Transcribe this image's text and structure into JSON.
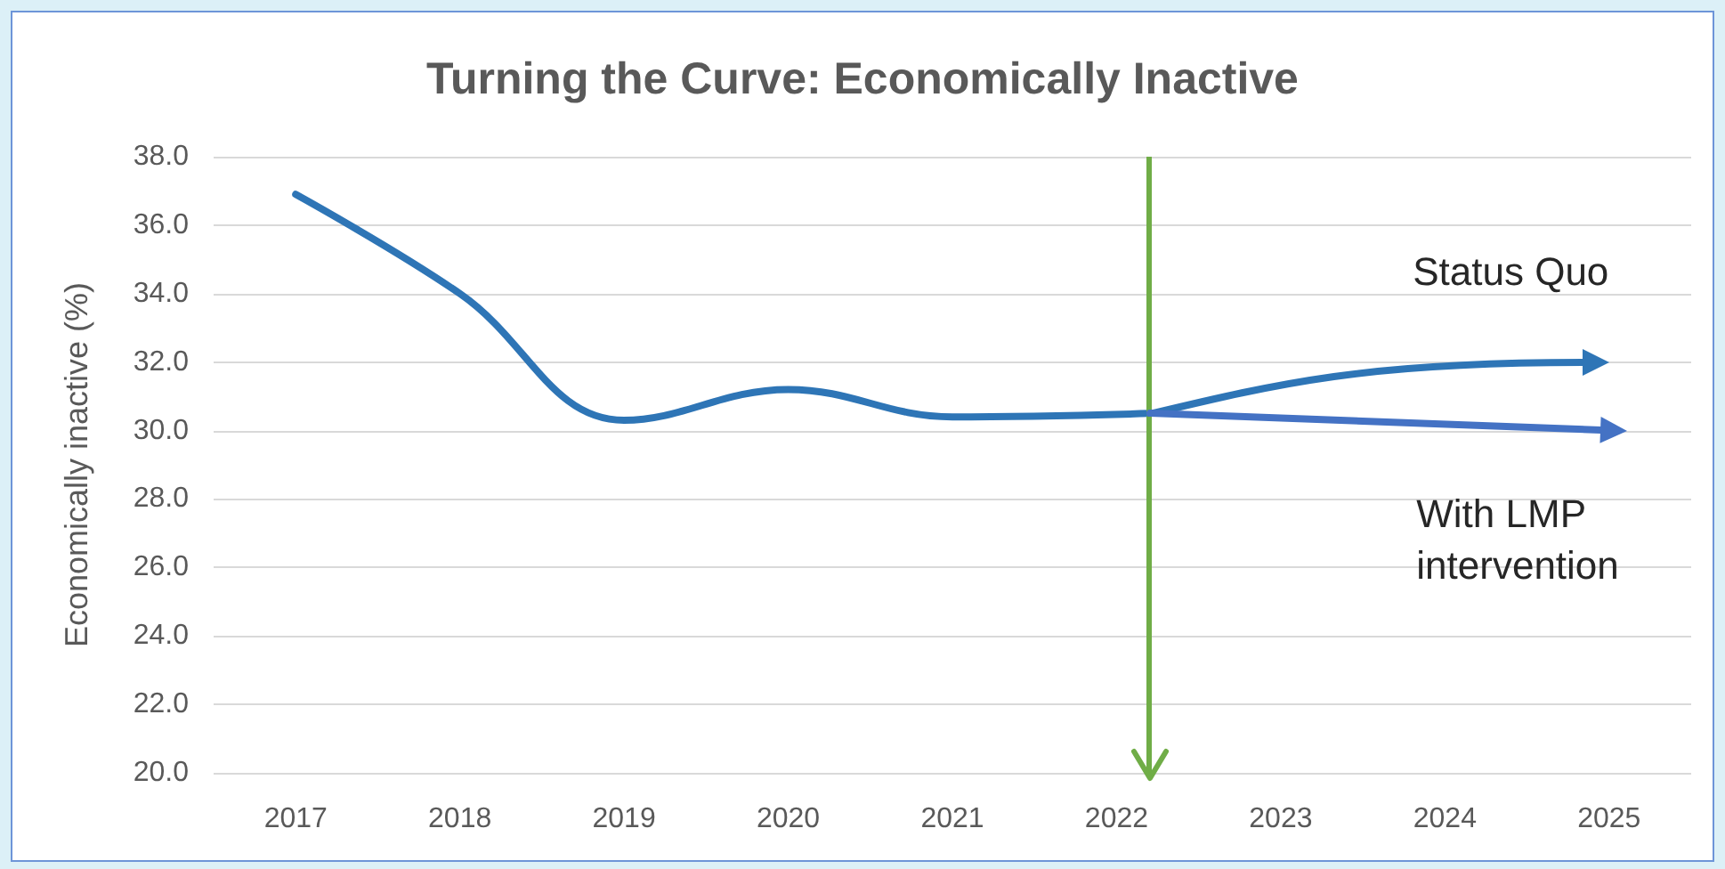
{
  "chart_data": {
    "type": "line",
    "title": "Turning the Curve: Economically Inactive",
    "ylabel": "Economically inactive (%)",
    "x": [
      2017,
      2018,
      2019,
      2020,
      2021,
      2022.2
    ],
    "values": [
      36.9,
      34.0,
      30.3,
      31.2,
      30.4,
      30.5
    ],
    "color": "#2e75b6",
    "annotations": [
      "Status Quo",
      "With LMP intervention"
    ],
    "xlim": [
      2016.5,
      2025.5
    ],
    "xticks": [
      2017,
      2018,
      2019,
      2020,
      2021,
      2022,
      2023,
      2024,
      2025
    ],
    "ylim": [
      20,
      38
    ],
    "yticks": [
      {
        "value": 20,
        "label": "20.0"
      },
      {
        "value": 22,
        "label": "22.0"
      },
      {
        "value": 24,
        "label": "24.0"
      },
      {
        "value": 26,
        "label": "26.0"
      },
      {
        "value": 28,
        "label": "28.0"
      },
      {
        "value": 30,
        "label": "30.0"
      },
      {
        "value": 32,
        "label": "32.0"
      },
      {
        "value": 34,
        "label": "34.0"
      },
      {
        "value": 36,
        "label": "36.0"
      },
      {
        "value": 38,
        "label": "38.0"
      }
    ],
    "grid": "y",
    "ref_lines": [
      {
        "axis": "x",
        "value": 2022.2,
        "color": "#70ad47"
      }
    ]
  }
}
